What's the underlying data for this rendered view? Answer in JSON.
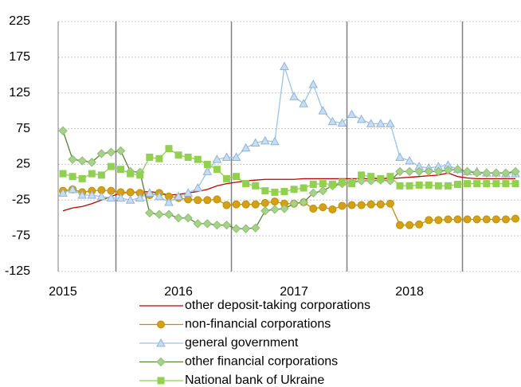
{
  "chart_data": {
    "type": "line",
    "categories": [
      "2015",
      null,
      null,
      null,
      null,
      null,
      null,
      null,
      null,
      null,
      null,
      null,
      "2016",
      null,
      null,
      null,
      null,
      null,
      null,
      null,
      null,
      null,
      null,
      null,
      "2017",
      null,
      null,
      null,
      null,
      null,
      null,
      null,
      null,
      null,
      null,
      null,
      "2018",
      null,
      null,
      null,
      null,
      null,
      null,
      null,
      null,
      null,
      null,
      null
    ],
    "ylim": [
      -125,
      225
    ],
    "yticks": [
      -125,
      -75,
      -25,
      25,
      75,
      125,
      175,
      225
    ],
    "grid": true,
    "legend": "bottom",
    "series": [
      {
        "name": "other deposit-taking corporations",
        "color": "#c00000",
        "marker": "none",
        "values": [
          -40,
          -36,
          -34,
          -30,
          -25,
          -20,
          -15,
          -14,
          -14,
          -13,
          -15,
          -18,
          -17,
          -15,
          -13,
          -10,
          -5,
          -2,
          0,
          2,
          3,
          4,
          4,
          4,
          4,
          5,
          5,
          5,
          5,
          5,
          5,
          5,
          5,
          5,
          5,
          6,
          7,
          8,
          9,
          10,
          13,
          8,
          6,
          5,
          5,
          5,
          5,
          5
        ]
      },
      {
        "name": "non-financial corporations",
        "color": "#bf9000",
        "marker": "circle",
        "values": [
          -12,
          -10,
          -14,
          -12,
          -11,
          -12,
          -14,
          -14,
          -15,
          -18,
          -15,
          -20,
          -22,
          -24,
          -25,
          -25,
          -24,
          -32,
          -31,
          -31,
          -31,
          -29,
          -27,
          -30,
          -30,
          -28,
          -37,
          -35,
          -38,
          -33,
          -32,
          -32,
          -31,
          -31,
          -30,
          -60,
          -60,
          -59,
          -53,
          -53,
          -52,
          -52,
          -52,
          -52,
          -52,
          -52,
          -52,
          -51
        ]
      },
      {
        "name": "general government",
        "color": "#9dc3e6",
        "marker": "triangle",
        "values": [
          -15,
          -10,
          -18,
          -18,
          -20,
          -22,
          -22,
          -25,
          -22,
          -15,
          -20,
          -28,
          -20,
          -15,
          -8,
          15,
          32,
          35,
          35,
          48,
          55,
          58,
          57,
          162,
          120,
          110,
          137,
          100,
          85,
          83,
          95,
          88,
          82,
          82,
          82,
          35,
          30,
          22,
          20,
          22,
          24,
          18,
          15,
          15,
          13,
          13,
          12,
          12
        ]
      },
      {
        "name": "other financial corporations",
        "color": "#548235",
        "marker": "diamond",
        "values": [
          72,
          32,
          30,
          28,
          40,
          42,
          44,
          15,
          14,
          -43,
          -45,
          -45,
          -50,
          -50,
          -58,
          -58,
          -60,
          -60,
          -65,
          -65,
          -64,
          -40,
          -38,
          -37,
          -30,
          -28,
          -15,
          -12,
          -5,
          -2,
          0,
          2,
          2,
          3,
          2,
          15,
          15,
          15,
          15,
          15,
          17,
          18,
          15,
          13,
          13,
          13,
          13,
          15
        ]
      },
      {
        "name": "National bank of Ukraine",
        "color": "#92d050",
        "marker": "square",
        "values": [
          12,
          8,
          5,
          12,
          10,
          22,
          18,
          12,
          10,
          35,
          33,
          47,
          38,
          35,
          32,
          25,
          18,
          5,
          8,
          -2,
          -5,
          -12,
          -14,
          -13,
          -10,
          -8,
          -3,
          -2,
          -3,
          0,
          -2,
          10,
          8,
          5,
          8,
          -5,
          -5,
          -4,
          -4,
          -5,
          -5,
          -3,
          -2,
          -2,
          -2,
          -2,
          -2,
          -2
        ]
      }
    ]
  }
}
